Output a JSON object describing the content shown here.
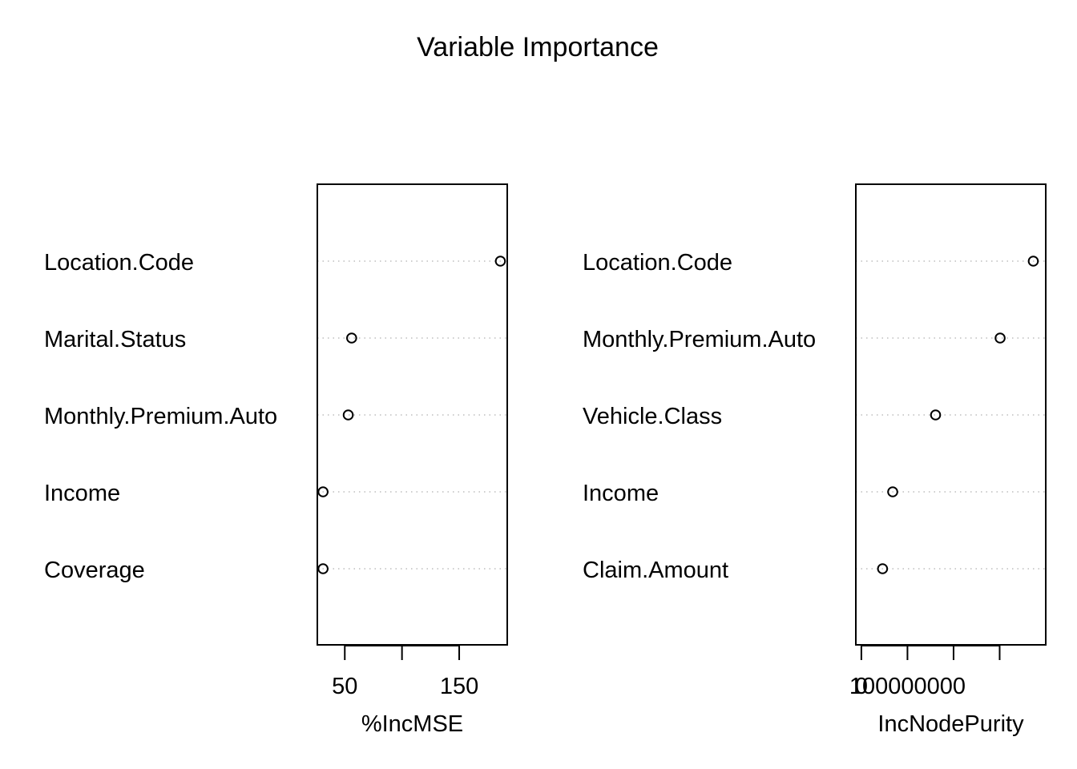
{
  "title": "Variable Importance",
  "colors": {
    "point": "#000000",
    "axis": "#000000",
    "grid": "#bebebe",
    "background": "#ffffff"
  },
  "chart_data": [
    {
      "type": "scatter",
      "style": "dotchart",
      "xlabel": "%IncMSE",
      "ylabel": "",
      "xlim": [
        26,
        192
      ],
      "ticks": [
        50,
        100,
        150
      ],
      "tick_labels": [
        "50",
        "",
        "150"
      ],
      "grid": "horizontal dotted",
      "categories": [
        "Location.Code",
        "Marital.Status",
        "Monthly.Premium.Auto",
        "Income",
        "Coverage"
      ],
      "values": [
        186,
        56,
        53,
        31,
        31
      ]
    },
    {
      "type": "scatter",
      "style": "dotchart",
      "xlabel": "IncNodePurity",
      "ylabel": "",
      "xlim": [
        -12000000,
        400000000
      ],
      "ticks": [
        0,
        100000000,
        200000000,
        300000000
      ],
      "tick_labels": [
        "0",
        "100000000",
        "",
        ""
      ],
      "grid": "horizontal dotted",
      "categories": [
        "Location.Code",
        "Monthly.Premium.Auto",
        "Vehicle.Class",
        "Income",
        "Claim.Amount"
      ],
      "values": [
        373000000,
        301000000,
        161000000,
        68000000,
        46000000
      ]
    }
  ]
}
